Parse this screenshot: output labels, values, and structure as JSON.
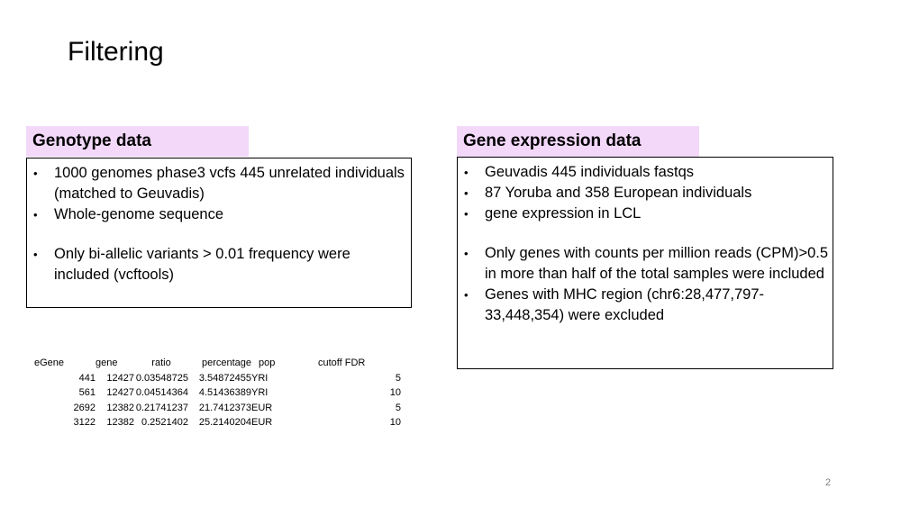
{
  "slide": {
    "title": "Filtering",
    "page_number": "2"
  },
  "genotype": {
    "header": "Genotype data",
    "bullets": [
      "1000 genomes phase3 vcfs 445 unrelated individuals (matched to Geuvadis)",
      "Whole-genome sequence",
      "Only bi-allelic variants > 0.01 frequency were included (vcftools)"
    ]
  },
  "expression": {
    "header": "Gene expression data",
    "bullets": [
      "Geuvadis 445 individuals fastqs",
      "87 Yoruba and 358 European individuals",
      "gene expression in LCL",
      "Only genes with counts per million reads (CPM)>0.5 in more than half of the total samples were included",
      "Genes with MHC region (chr6:28,477,797-33,448,354) were excluded"
    ]
  },
  "table": {
    "headers": [
      "eGene",
      "gene",
      "ratio",
      "percentage",
      "pop",
      "cutoff FDR"
    ],
    "rows": [
      [
        "441",
        "12427",
        "0.03548725",
        "3.54872455",
        "YRI",
        "5"
      ],
      [
        "561",
        "12427",
        "0.04514364",
        "4.51436389",
        "YRI",
        "10"
      ],
      [
        "2692",
        "12382",
        "0.21741237",
        "21.7412373",
        "EUR",
        "5"
      ],
      [
        "3122",
        "12382",
        "0.2521402",
        "25.2140204",
        "EUR",
        "10"
      ]
    ]
  }
}
